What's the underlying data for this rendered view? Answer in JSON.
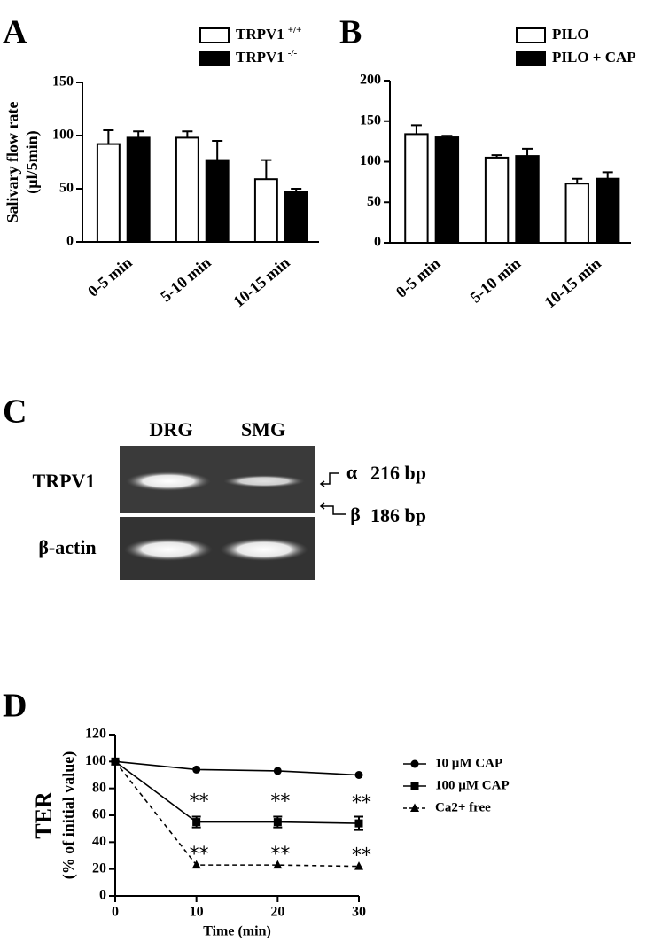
{
  "chart_data": [
    {
      "type": "bar",
      "label": "A",
      "ylabel": [
        "Salivary flow rate",
        "(µl/5min)"
      ],
      "categories": [
        "0-5 min",
        "5-10 min",
        "10-15 min"
      ],
      "ylim": [
        0,
        150
      ],
      "yticks": [
        0,
        50,
        100,
        150
      ],
      "series": [
        {
          "name": "TRPV1",
          "name_sup": "+/+",
          "color": "#ffffff",
          "values": [
            92,
            98,
            59
          ],
          "errors": [
            13,
            6,
            18
          ]
        },
        {
          "name": "TRPV1",
          "name_sup": "-/-",
          "color": "#000000",
          "values": [
            98,
            77,
            47
          ],
          "errors": [
            6,
            18,
            3
          ]
        }
      ]
    },
    {
      "type": "bar",
      "label": "B",
      "categories": [
        "0-5 min",
        "5-10 min",
        "10-15 min"
      ],
      "ylim": [
        0,
        200
      ],
      "yticks": [
        0,
        50,
        100,
        150,
        200
      ],
      "series": [
        {
          "name": "PILO",
          "color": "#ffffff",
          "values": [
            134,
            105,
            73
          ],
          "errors": [
            11,
            3,
            6
          ]
        },
        {
          "name": "PILO + CAP",
          "color": "#000000",
          "values": [
            130,
            107,
            79
          ],
          "errors": [
            2,
            9,
            8
          ]
        }
      ]
    },
    {
      "type": "line",
      "label": "D",
      "ylabel": [
        "TER",
        "(% of initial value)"
      ],
      "xlabel": "Time (min)",
      "x": [
        0,
        10,
        20,
        30
      ],
      "xlim": [
        0,
        30
      ],
      "xticks": [
        0,
        10,
        20,
        30
      ],
      "ylim": [
        0,
        120
      ],
      "yticks": [
        0,
        20,
        40,
        60,
        80,
        100,
        120
      ],
      "series": [
        {
          "name": "10 µM CAP",
          "color": "#000000",
          "marker": "circle",
          "dash": false,
          "values": [
            100,
            94,
            93,
            90
          ]
        },
        {
          "name": "100 µM CAP",
          "color": "#000000",
          "marker": "square",
          "dash": false,
          "values": [
            100,
            55,
            55,
            54
          ],
          "errors": [
            0,
            4,
            4,
            5
          ],
          "significance": [
            null,
            "**",
            "**",
            "**"
          ]
        },
        {
          "name": "Ca2+ free",
          "color": "#000000",
          "marker": "triangle",
          "dash": true,
          "values": [
            100,
            23,
            23,
            22
          ],
          "significance": [
            null,
            "**",
            "**",
            "**"
          ]
        }
      ]
    }
  ],
  "gel": {
    "label": "C",
    "lanes": [
      "DRG",
      "SMG"
    ],
    "rows": [
      "TRPV1",
      "β-actin"
    ],
    "bands": [
      {
        "symbol": "α",
        "size": "216 bp"
      },
      {
        "symbol": "β",
        "size": "186 bp"
      }
    ]
  }
}
